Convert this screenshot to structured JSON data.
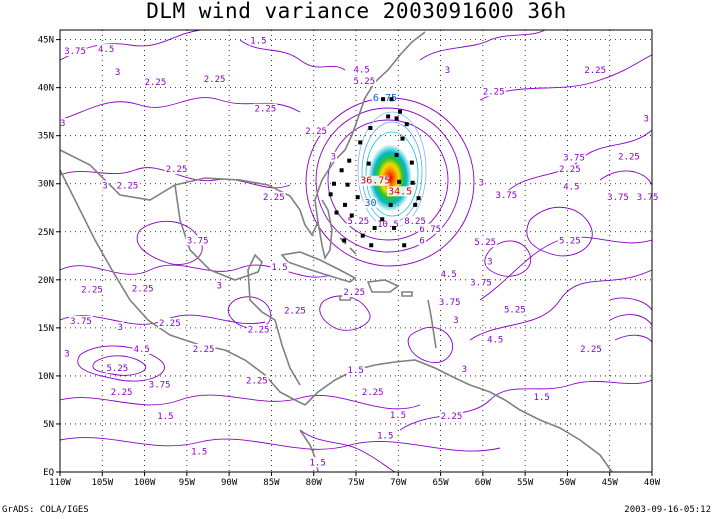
{
  "title": "DLM wind variance 2003091600 36h",
  "footer": {
    "left": "GrADS: COLA/IGES",
    "right": "2003-09-16-05:12"
  },
  "map": {
    "lon_range": [
      -110,
      -40
    ],
    "lat_range": [
      0,
      46
    ],
    "x_ticks": [
      "110W",
      "105W",
      "100W",
      "95W",
      "90W",
      "85W",
      "80W",
      "75W",
      "70W",
      "65W",
      "60W",
      "55W",
      "50W",
      "45W",
      "40W"
    ],
    "y_ticks": [
      "EQ",
      "5N",
      "10N",
      "15N",
      "20N",
      "25N",
      "30N",
      "35N",
      "40N",
      "45N"
    ],
    "grid": "dotted",
    "colors": {
      "contour": "#8a00c8",
      "coast": "#808080",
      "grid": "#000000"
    }
  },
  "contour_labels": [
    {
      "text": "3.75",
      "lon": -109.5,
      "lat": 43.5
    },
    {
      "text": "4.5",
      "lon": -105.5,
      "lat": 43.7
    },
    {
      "text": "3",
      "lon": -103.5,
      "lat": 41.3
    },
    {
      "text": "2.25",
      "lon": -100,
      "lat": 40.3
    },
    {
      "text": "2.25",
      "lon": -93,
      "lat": 40.6
    },
    {
      "text": "1.5",
      "lon": -87.5,
      "lat": 44.6
    },
    {
      "text": "3",
      "lon": -110,
      "lat": 36
    },
    {
      "text": "2.25",
      "lon": -87,
      "lat": 37.5
    },
    {
      "text": "2.25",
      "lon": -81,
      "lat": 35.2
    },
    {
      "text": "2.25",
      "lon": -97.5,
      "lat": 31.2
    },
    {
      "text": "3",
      "lon": -105,
      "lat": 29.5
    },
    {
      "text": "2.25",
      "lon": -103.3,
      "lat": 29.5
    },
    {
      "text": "2.25",
      "lon": -86,
      "lat": 28.3
    },
    {
      "text": "3.75",
      "lon": -95,
      "lat": 23.8
    },
    {
      "text": "1.5",
      "lon": -85,
      "lat": 21
    },
    {
      "text": "2.25",
      "lon": -107.5,
      "lat": 18.7
    },
    {
      "text": "2.25",
      "lon": -101.5,
      "lat": 18.8
    },
    {
      "text": "3",
      "lon": -91.5,
      "lat": 19.1
    },
    {
      "text": "2.25",
      "lon": -83.5,
      "lat": 16.5
    },
    {
      "text": "3.75",
      "lon": -108.8,
      "lat": 15.4
    },
    {
      "text": "3",
      "lon": -103.2,
      "lat": 14.8
    },
    {
      "text": "2.25",
      "lon": -98.3,
      "lat": 15.2
    },
    {
      "text": "2.25",
      "lon": -87.8,
      "lat": 14.5
    },
    {
      "text": "4.5",
      "lon": -101.3,
      "lat": 12.5
    },
    {
      "text": "3",
      "lon": -109.5,
      "lat": 12
    },
    {
      "text": "5.25",
      "lon": -104.5,
      "lat": 10.5
    },
    {
      "text": "2.25",
      "lon": -94.3,
      "lat": 12.5
    },
    {
      "text": "3.75",
      "lon": -99.5,
      "lat": 8.8
    },
    {
      "text": "2.25",
      "lon": -104,
      "lat": 8
    },
    {
      "text": "2.25",
      "lon": -88,
      "lat": 9.2
    },
    {
      "text": "1.5",
      "lon": -98.5,
      "lat": 5.5
    },
    {
      "text": "1.5",
      "lon": -94.5,
      "lat": 1.8
    },
    {
      "text": "1.5",
      "lon": -80.5,
      "lat": 0.7
    },
    {
      "text": "1.5",
      "lon": -76,
      "lat": 10.3
    },
    {
      "text": "2.25",
      "lon": -74.3,
      "lat": 8
    },
    {
      "text": "1.5",
      "lon": -72.5,
      "lat": 3.5
    },
    {
      "text": "1.5",
      "lon": -71,
      "lat": 5.6
    },
    {
      "text": "2.25",
      "lon": -65,
      "lat": 5.5
    },
    {
      "text": "2.25",
      "lon": -76.5,
      "lat": 18.4
    },
    {
      "text": "3.75",
      "lon": -65.2,
      "lat": 17.4
    },
    {
      "text": "3",
      "lon": -63.5,
      "lat": 15.5
    },
    {
      "text": "4.5",
      "lon": -65,
      "lat": 20.3
    },
    {
      "text": "3.75",
      "lon": -61.5,
      "lat": 19.4
    },
    {
      "text": "3",
      "lon": -62.5,
      "lat": 10.4
    },
    {
      "text": "1.5",
      "lon": -54,
      "lat": 7.5
    },
    {
      "text": "2.25",
      "lon": -48.5,
      "lat": 12.5
    },
    {
      "text": "4.5",
      "lon": -59.5,
      "lat": 13.5
    },
    {
      "text": "5.25",
      "lon": -57.5,
      "lat": 16.6
    },
    {
      "text": "5.25",
      "lon": -61,
      "lat": 23.6
    },
    {
      "text": "3",
      "lon": -59.5,
      "lat": 21.6
    },
    {
      "text": "5.25",
      "lon": -51,
      "lat": 23.8
    },
    {
      "text": "3.75",
      "lon": -58.5,
      "lat": 28.5
    },
    {
      "text": "3",
      "lon": -60.5,
      "lat": 29.8
    },
    {
      "text": "3.75",
      "lon": -50.5,
      "lat": 32.4
    },
    {
      "text": "4.5",
      "lon": -50.5,
      "lat": 29.4
    },
    {
      "text": "2.25",
      "lon": -51,
      "lat": 31.2
    },
    {
      "text": "3.75",
      "lon": -45.3,
      "lat": 28.3
    },
    {
      "text": "3.75",
      "lon": -41.8,
      "lat": 28.3
    },
    {
      "text": "2.25",
      "lon": -44,
      "lat": 32.5
    },
    {
      "text": "3",
      "lon": -41,
      "lat": 36.5
    },
    {
      "text": "2.25",
      "lon": -48,
      "lat": 41.5
    },
    {
      "text": "2.25",
      "lon": -60,
      "lat": 39.3
    },
    {
      "text": "3",
      "lon": -64.5,
      "lat": 41.5
    },
    {
      "text": "4.5",
      "lon": -75.3,
      "lat": 41.6
    },
    {
      "text": "5.25",
      "lon": -75.3,
      "lat": 40.4
    },
    {
      "text": "3",
      "lon": -78,
      "lat": 32.5
    },
    {
      "text": "6",
      "lon": -67.5,
      "lat": 23.8
    },
    {
      "text": "6.75",
      "lon": -67.5,
      "lat": 25
    },
    {
      "text": "8.25",
      "lon": -69.3,
      "lat": 25.8
    },
    {
      "text": "10.5",
      "lon": -72.5,
      "lat": 25.5
    },
    {
      "text": "5.25",
      "lon": -76,
      "lat": 25.8
    }
  ],
  "storm": {
    "center": {
      "lon": -72.5,
      "lat": 30.0
    },
    "labels": [
      {
        "text": "36.75",
        "lon": -74.5,
        "lat": 30.0
      },
      {
        "text": "34.5",
        "lon": -71.2,
        "lat": 28.9
      },
      {
        "text": "6.75",
        "lon": -73,
        "lat": 38.6
      },
      {
        "text": "30",
        "lon": -74,
        "lat": 27.7
      }
    ]
  },
  "ensemble_points": [
    {
      "lon": -71.8,
      "lat": 38.8
    },
    {
      "lon": -70.8,
      "lat": 38.8
    },
    {
      "lon": -69.8,
      "lat": 37.5
    },
    {
      "lon": -71.2,
      "lat": 37.0
    },
    {
      "lon": -70.2,
      "lat": 36.8
    },
    {
      "lon": -73.3,
      "lat": 35.8
    },
    {
      "lon": -69.0,
      "lat": 36.2
    },
    {
      "lon": -74.5,
      "lat": 34.3
    },
    {
      "lon": -69.5,
      "lat": 34.7
    },
    {
      "lon": -75.8,
      "lat": 32.4
    },
    {
      "lon": -70.2,
      "lat": 33.0
    },
    {
      "lon": -68.4,
      "lat": 32.2
    },
    {
      "lon": -76.7,
      "lat": 31.4
    },
    {
      "lon": -73.5,
      "lat": 32.1
    },
    {
      "lon": -77.6,
      "lat": 30.0
    },
    {
      "lon": -76.0,
      "lat": 29.9
    },
    {
      "lon": -69.9,
      "lat": 30.2
    },
    {
      "lon": -68.3,
      "lat": 30.1
    },
    {
      "lon": -78.0,
      "lat": 28.9
    },
    {
      "lon": -74.8,
      "lat": 28.6
    },
    {
      "lon": -67.6,
      "lat": 28.5
    },
    {
      "lon": -76.3,
      "lat": 27.8
    },
    {
      "lon": -70.9,
      "lat": 27.8
    },
    {
      "lon": -68.0,
      "lat": 27.8
    },
    {
      "lon": -75.5,
      "lat": 26.7
    },
    {
      "lon": -71.9,
      "lat": 26.3
    },
    {
      "lon": -72.8,
      "lat": 25.4
    },
    {
      "lon": -70.5,
      "lat": 25.4
    },
    {
      "lon": -74.2,
      "lat": 24.6
    },
    {
      "lon": -76.4,
      "lat": 24.1
    },
    {
      "lon": -73.2,
      "lat": 23.6
    },
    {
      "lon": -69.3,
      "lat": 23.6
    },
    {
      "lon": -77.3,
      "lat": 27.0
    }
  ]
}
